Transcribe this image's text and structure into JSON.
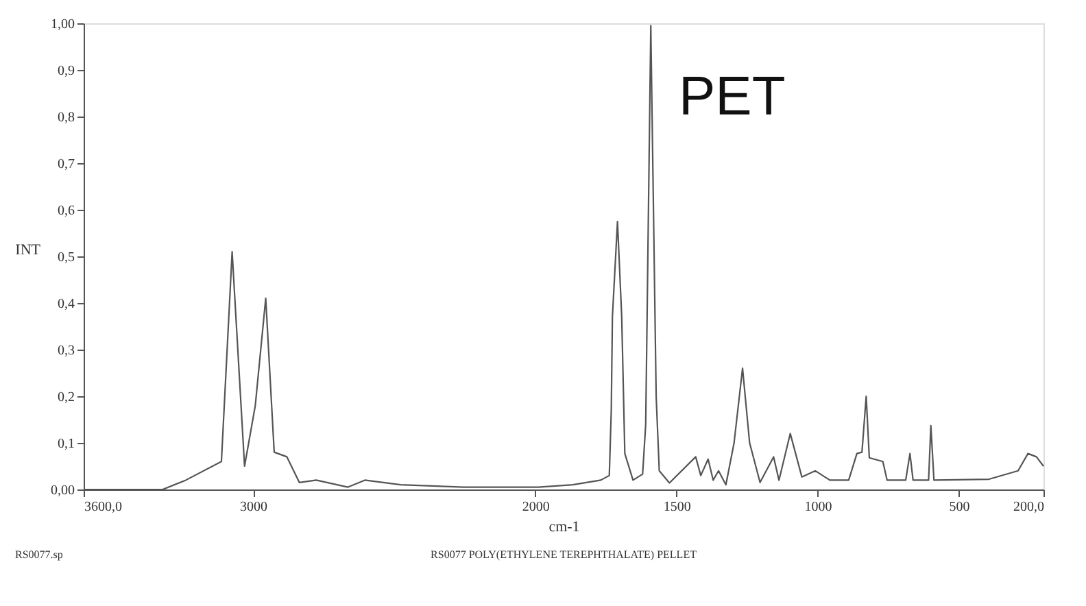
{
  "chart_data": {
    "type": "line",
    "xlabel": "cm-1",
    "ylabel": "INT",
    "annotations": [
      "PET",
      "RS0077.sp",
      "RS0077 POLY(ETHYLENE TEREPHTHALATE) PELLET"
    ],
    "x": [
      3600,
      3320,
      3238,
      3112,
      3074,
      3030,
      2992,
      2955,
      2925,
      2880,
      2836,
      2776,
      2664,
      2604,
      2477,
      2254,
      1989,
      1867,
      1768,
      1738,
      1731,
      1727,
      1709,
      1694,
      1683,
      1654,
      1620,
      1609,
      1591,
      1572,
      1561,
      1525,
      1432,
      1414,
      1388,
      1370,
      1351,
      1325,
      1296,
      1266,
      1241,
      1204,
      1156,
      1137,
      1097,
      1056,
      1008,
      957,
      890,
      861,
      843,
      828,
      817,
      769,
      754,
      688,
      673,
      662,
      607,
      599,
      588,
      393,
      290,
      255,
      225,
      200
    ],
    "series": [
      {
        "color": "#555555",
        "values": [
          0.0,
          0.0,
          0.02,
          0.06,
          0.51,
          0.05,
          0.18,
          0.41,
          0.08,
          0.07,
          0.015,
          0.02,
          0.005,
          0.02,
          0.01,
          0.005,
          0.005,
          0.01,
          0.02,
          0.03,
          0.17,
          0.37,
          0.575,
          0.37,
          0.077,
          0.02,
          0.033,
          0.14,
          0.995,
          0.2,
          0.04,
          0.014,
          0.07,
          0.03,
          0.065,
          0.02,
          0.04,
          0.01,
          0.1,
          0.26,
          0.1,
          0.015,
          0.07,
          0.02,
          0.12,
          0.027,
          0.04,
          0.02,
          0.02,
          0.077,
          0.08,
          0.2,
          0.068,
          0.06,
          0.02,
          0.02,
          0.077,
          0.02,
          0.02,
          0.137,
          0.02,
          0.022,
          0.04,
          0.077,
          0.07,
          0.05
        ]
      }
    ],
    "xlim": [
      3600,
      200
    ],
    "xticks": [
      {
        "value": 3600,
        "label": "3600,0"
      },
      3000,
      2000,
      1500,
      1000,
      500,
      {
        "value": 200,
        "label": "200,0"
      }
    ],
    "ylim": [
      0,
      1
    ],
    "yticks": [
      {
        "value": 0,
        "label": "0,00"
      },
      {
        "value": 0.1,
        "label": "0,1"
      },
      {
        "value": 0.2,
        "label": "0,2"
      },
      {
        "value": 0.3,
        "label": "0,3"
      },
      {
        "value": 0.4,
        "label": "0,4"
      },
      {
        "value": 0.5,
        "label": "0,5"
      },
      {
        "value": 0.6,
        "label": "0,6"
      },
      {
        "value": 0.7,
        "label": "0,7"
      },
      {
        "value": 0.8,
        "label": "0,8"
      },
      {
        "value": 0.9,
        "label": "0,9"
      },
      {
        "value": 1,
        "label": "1,00"
      }
    ],
    "grid": false,
    "line_style": "solid",
    "marker": "none"
  }
}
